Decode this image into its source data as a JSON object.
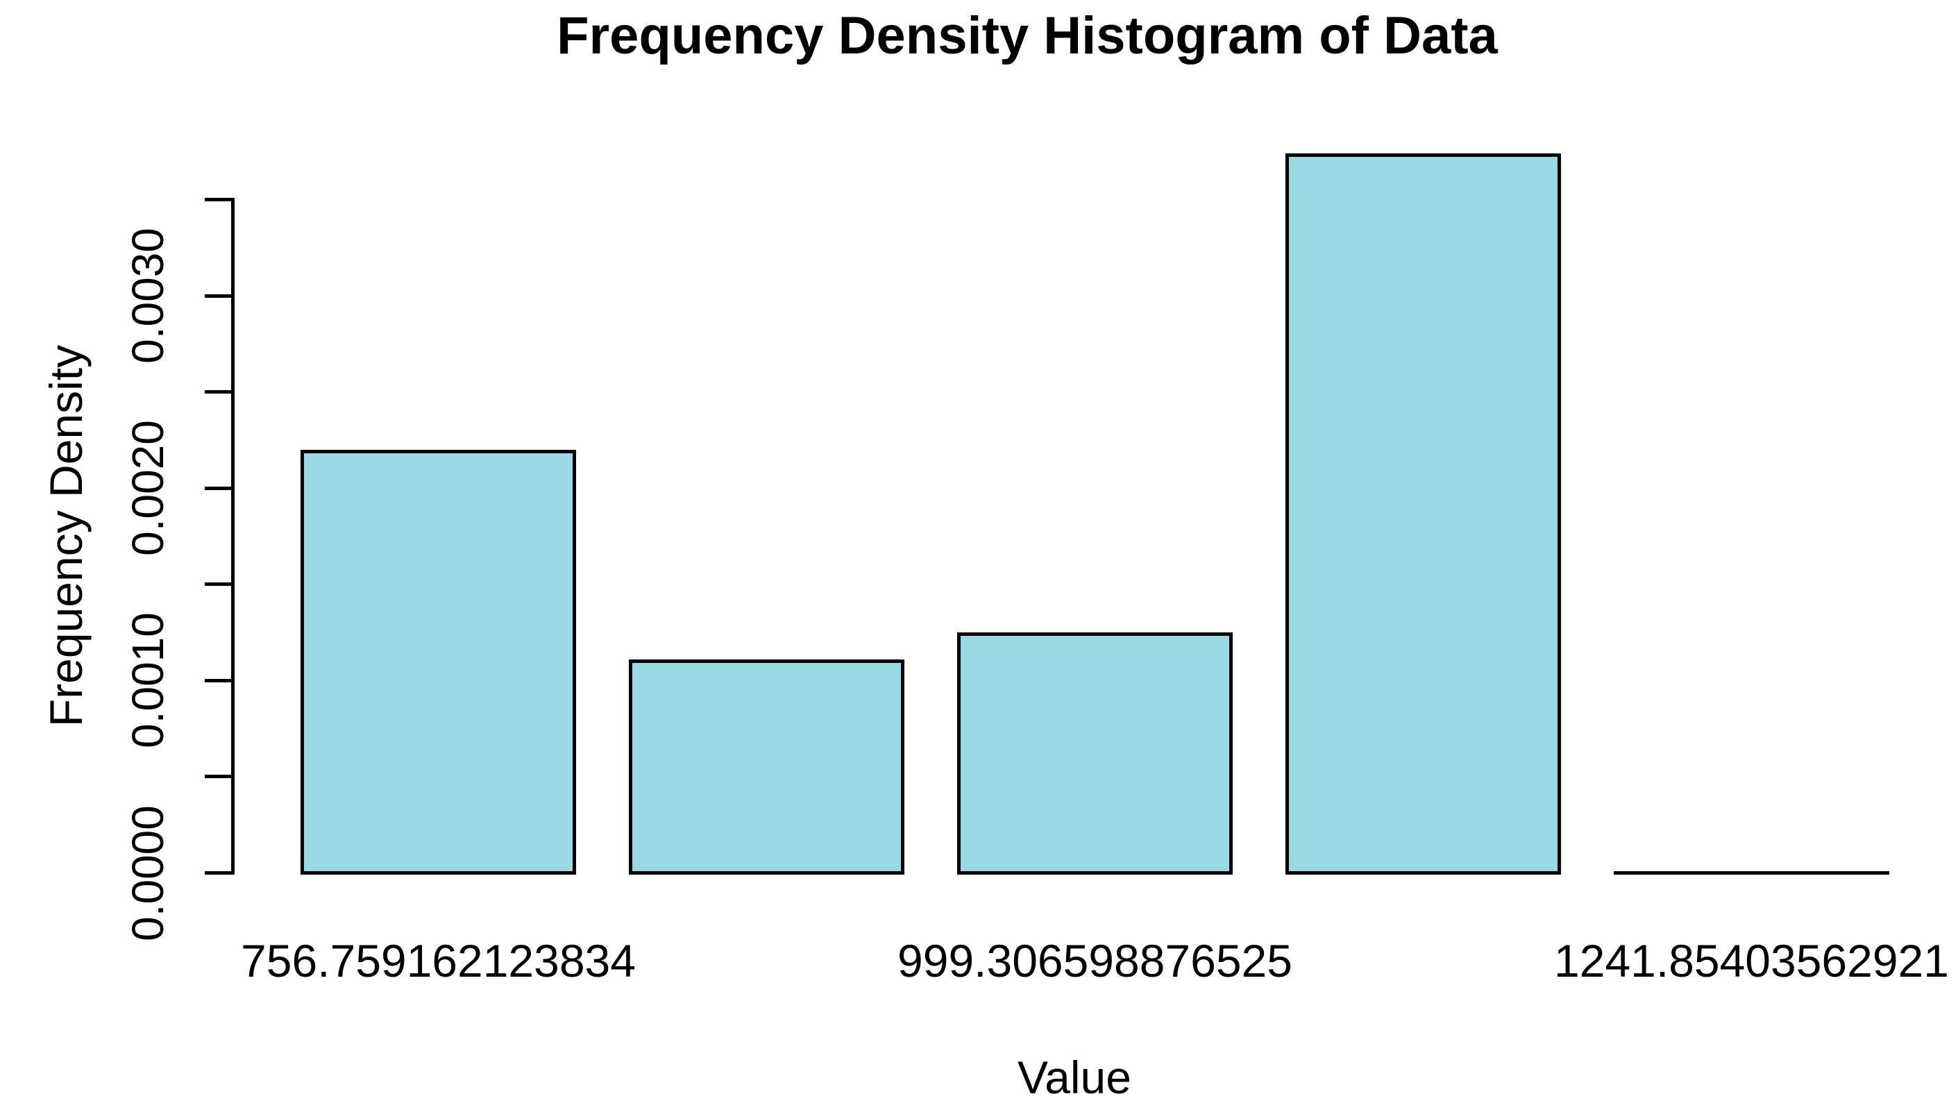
{
  "chart_data": {
    "type": "bar",
    "title": "Frequency Density Histogram of Data",
    "xlabel": "Value",
    "ylabel": "Frequency Density",
    "categories": [
      "756.759162123834",
      "",
      "999.306598876525",
      "",
      "1241.85403562921"
    ],
    "values": [
      0.00221,
      0.00112,
      0.00126,
      0.00375,
      0
    ],
    "x_tick_labels": [
      {
        "label": "756.759162123834",
        "bar_index": 0
      },
      {
        "label": "999.306598876525",
        "bar_index": 2
      },
      {
        "label": "1241.85403562921",
        "bar_index": 4
      }
    ],
    "y_axis": {
      "range": [
        0,
        0.0035
      ],
      "ticks": [
        0,
        0.0005,
        0.001,
        0.0015,
        0.002,
        0.0025,
        0.003,
        0.0035
      ],
      "labeled_ticks": [
        {
          "label": "0.0000",
          "value": 0
        },
        {
          "label": "0.0010",
          "value": 0.001
        },
        {
          "label": "0.0020",
          "value": 0.002
        },
        {
          "label": "0.0030",
          "value": 0.003
        }
      ]
    },
    "ylim": [
      0,
      0.00375
    ],
    "grid": false,
    "legend": false,
    "colors": {
      "bar_fill": "#9ADAE5",
      "bar_stroke": "#000000",
      "axis": "#000000",
      "text": "#000000",
      "background": "#ffffff"
    }
  }
}
